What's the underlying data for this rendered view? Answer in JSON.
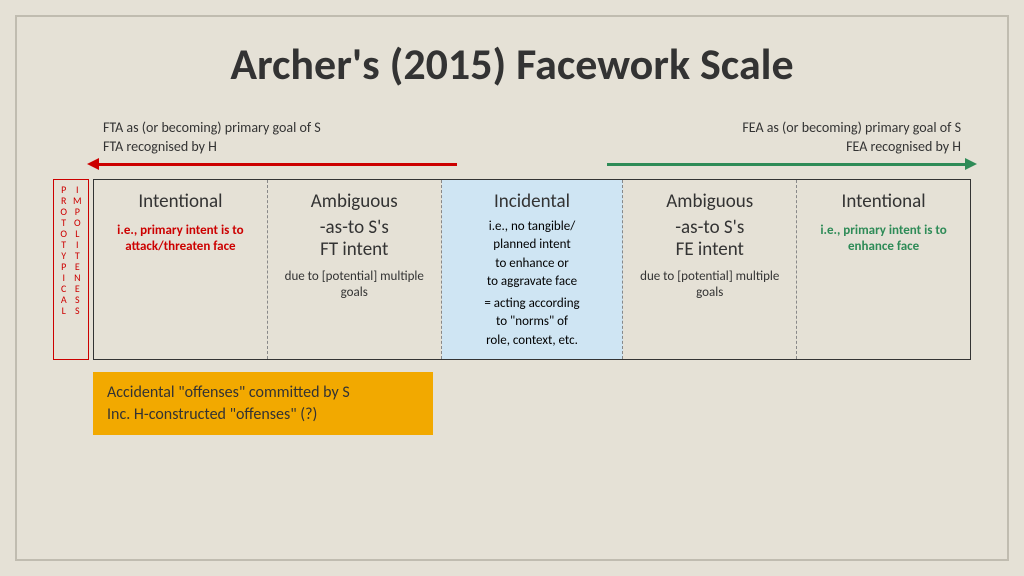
{
  "title": "Archer's (2015) Facework Scale",
  "colors": {
    "background": "#e5e1d6",
    "frame_border": "#c0bcb0",
    "red": "#cc0000",
    "green": "#2e8b57",
    "incidental_bg": "#cfe5f3",
    "orange": "#f2a900",
    "text": "#333333"
  },
  "top_left": {
    "line1": "FTA as (or becoming) primary goal of S",
    "line2": "FTA recognised by H"
  },
  "top_right": {
    "line1": "FEA as (or becoming) primary goal of S",
    "line2": "FEA recognised by H"
  },
  "side_label": {
    "word1": "PROTOTYPICAL",
    "word2": "IMPOLITENESS"
  },
  "cells": [
    {
      "title": "Intentional",
      "desc": "i.e., primary intent is to attack/threaten face",
      "desc_class": "red-desc"
    },
    {
      "title": "Ambiguous",
      "sub1": "-as-to S's",
      "sub2": "FT intent",
      "desc": "due to [potential] multiple  goals"
    },
    {
      "title": "Incidental",
      "line1": "i.e., no tangible/",
      "line2": "planned intent",
      "line3": "to enhance or",
      "line4": "to aggravate face",
      "line5": "= acting according",
      "line6": "to \"norms\" of",
      "line7": "role, context,  etc."
    },
    {
      "title": "Ambiguous",
      "sub1": "-as-to S's",
      "sub2": "FE intent",
      "desc": "due to [potential] multiple  goals"
    },
    {
      "title": "Intentional",
      "desc": "i.e., primary intent is to enhance face",
      "desc_class": "green-desc"
    }
  ],
  "orange": {
    "line1": "Accidental \"offenses\" committed by S",
    "line2": "Inc. H-constructed \"offenses\" (?)"
  }
}
